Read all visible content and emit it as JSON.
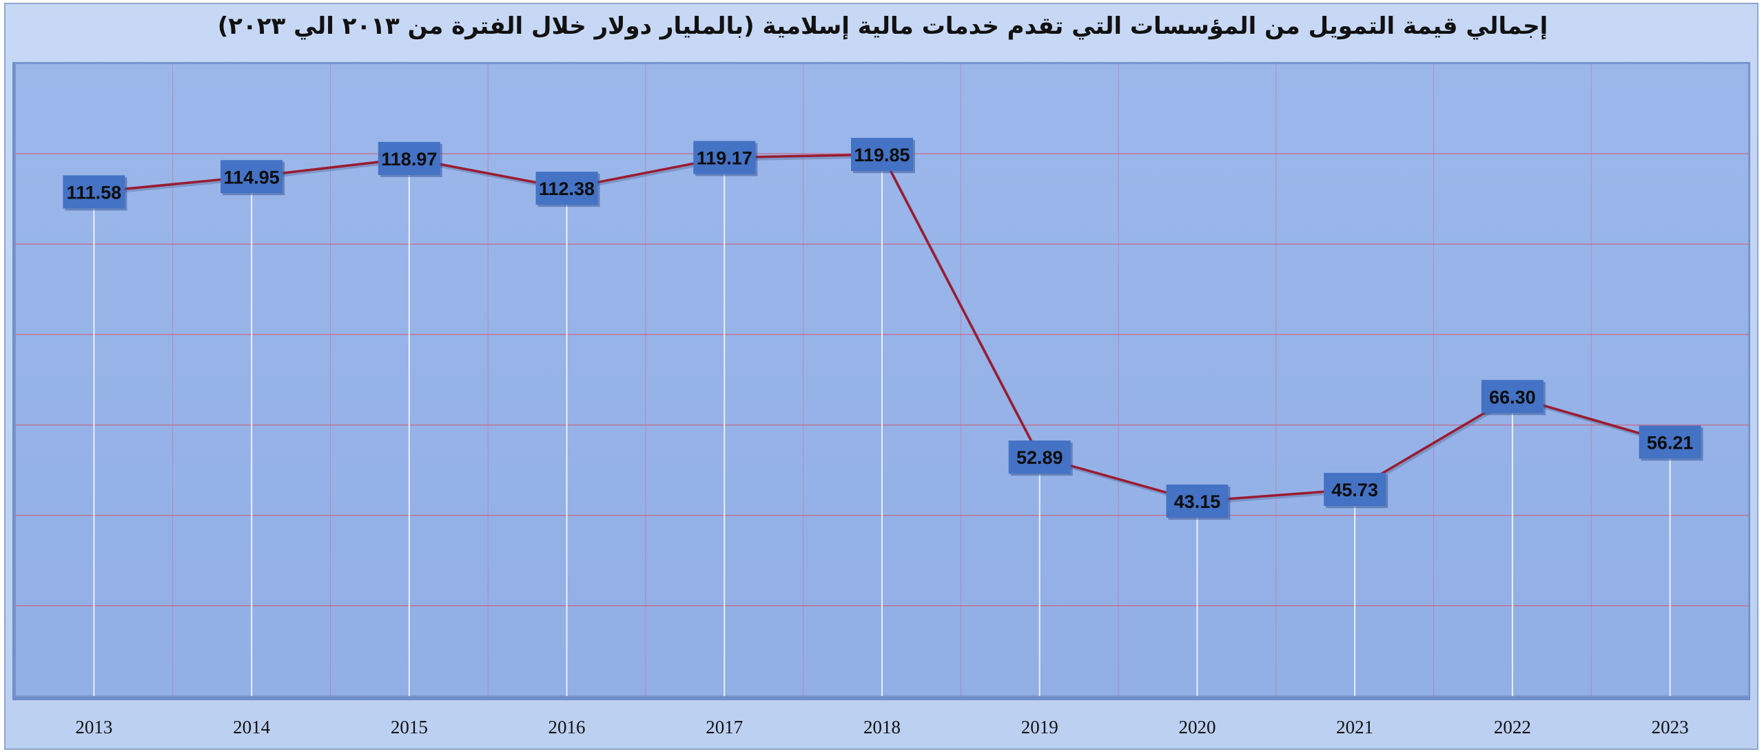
{
  "chart_data": {
    "type": "line",
    "title": "إجمالي قيمة التمويل من المؤسسات التي تقدم خدمات مالية إسلامية (بالمليار دولار خلال الفترة من ٢٠١٣ الي ٢٠٢٣)",
    "xlabel": "",
    "ylabel": "",
    "categories": [
      "2013",
      "2014",
      "2015",
      "2016",
      "2017",
      "2018",
      "2019",
      "2020",
      "2021",
      "2022",
      "2023"
    ],
    "series": [
      {
        "values": [
          111.58,
          114.95,
          118.97,
          112.38,
          119.17,
          119.85,
          52.89,
          43.15,
          45.73,
          66.3,
          56.21
        ],
        "labels": [
          "111.58",
          "114.95",
          "118.97",
          "112.38",
          "119.17",
          "119.85",
          "52.89",
          "43.15",
          "45.73",
          "66.30",
          "56.21"
        ]
      }
    ],
    "ylim": [
      0,
      140
    ],
    "grid": true,
    "legend": "none",
    "colors": {
      "line": "#9b1b30",
      "plot_background": "#98b4e8",
      "frame_background": "#c4d6f4",
      "data_label_box": "#4472c4",
      "gridline": "#c86a8a",
      "drop_line": "#ffffff"
    }
  }
}
